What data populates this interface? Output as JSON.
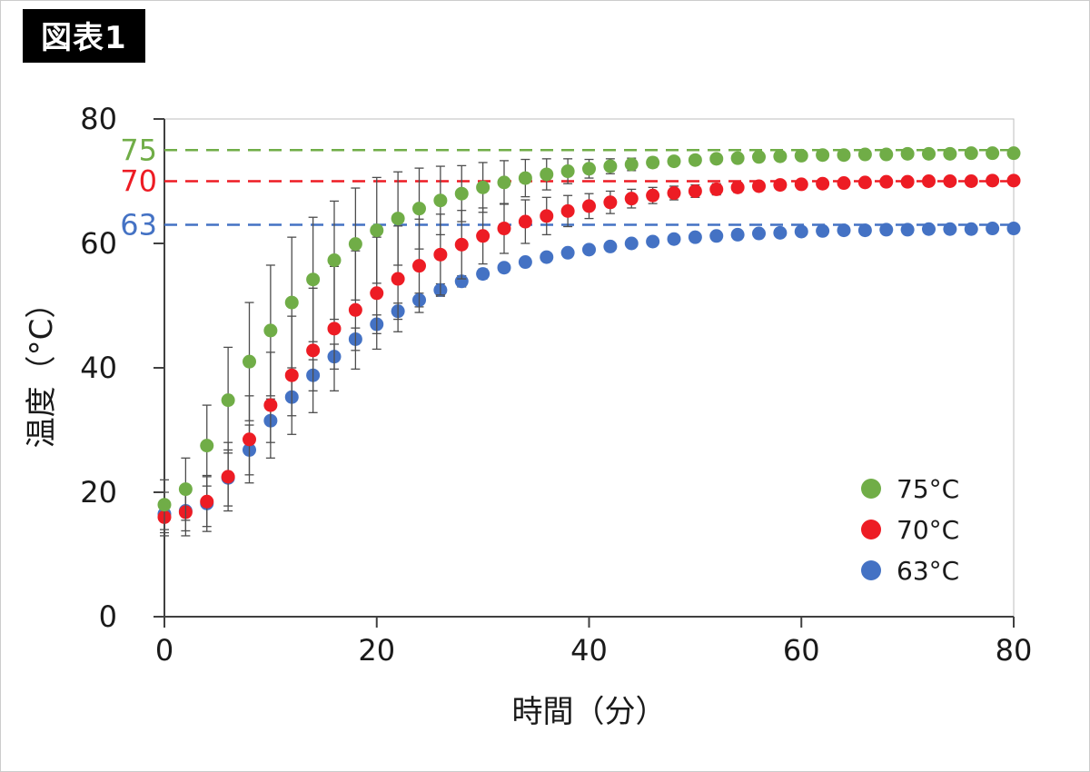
{
  "figure_label": "図表1",
  "chart_data": {
    "type": "scatter",
    "title": "",
    "xlabel": "時間（分）",
    "ylabel": "温度（°C）",
    "xlim": [
      0,
      80
    ],
    "ylim": [
      0,
      80
    ],
    "xticks": [
      0,
      20,
      40,
      60,
      80
    ],
    "yticks": [
      0,
      20,
      40,
      60,
      80
    ],
    "grid": false,
    "legend_position": "bottom-right",
    "error_bar_color": "#4d4d4d",
    "axis_color": "#404040",
    "text_color": "#1a1a1a",
    "x": [
      0,
      2,
      4,
      6,
      8,
      10,
      12,
      14,
      16,
      18,
      20,
      22,
      24,
      26,
      28,
      30,
      32,
      34,
      36,
      38,
      40,
      42,
      44,
      46,
      48,
      50,
      52,
      54,
      56,
      58,
      60,
      62,
      64,
      66,
      68,
      70,
      72,
      74,
      76,
      78,
      80
    ],
    "series": [
      {
        "name": "75°C",
        "color": "#70ad47",
        "target": 75,
        "values": [
          18,
          20.5,
          27.5,
          34.8,
          41,
          46,
          50.5,
          54.2,
          57.3,
          59.9,
          62.1,
          64,
          65.6,
          66.9,
          68,
          69,
          69.8,
          70.5,
          71.1,
          71.6,
          72,
          72.4,
          72.7,
          73,
          73.2,
          73.4,
          73.6,
          73.7,
          73.9,
          74,
          74.1,
          74.2,
          74.2,
          74.3,
          74.3,
          74.4,
          74.4,
          74.4,
          74.5,
          74.5,
          74.5
        ],
        "errors": [
          4,
          5,
          6.5,
          8.5,
          9.5,
          10.5,
          10.5,
          10,
          9.5,
          9,
          8.5,
          7.5,
          6.5,
          5.5,
          4.5,
          4,
          3.5,
          3,
          2.5,
          2,
          1.5,
          1.2,
          1,
          0.8,
          0.7,
          0.6,
          0.5,
          0.5,
          0.4,
          0.4,
          0.3,
          0.3,
          0.3,
          0.3,
          0.3,
          0.3,
          0.3,
          0.3,
          0.3,
          0.3,
          0.3
        ]
      },
      {
        "name": "70°C",
        "color": "#ed1c24",
        "target": 70,
        "values": [
          16,
          16.8,
          18.5,
          22.5,
          28.5,
          34,
          38.8,
          42.8,
          46.3,
          49.3,
          52,
          54.3,
          56.4,
          58.2,
          59.8,
          61.2,
          62.4,
          63.5,
          64.4,
          65.2,
          66,
          66.6,
          67.2,
          67.7,
          68.1,
          68.4,
          68.7,
          69,
          69.2,
          69.4,
          69.5,
          69.6,
          69.7,
          69.8,
          69.9,
          69.9,
          70,
          70,
          70,
          70.1,
          70.1
        ],
        "errors": [
          2.5,
          3,
          4,
          5.5,
          7,
          8.5,
          9.5,
          10,
          10,
          9.5,
          9,
          8.5,
          7.5,
          6.5,
          5.5,
          4.5,
          4,
          3.5,
          3,
          2.5,
          2,
          1.8,
          1.5,
          1.3,
          1.1,
          1,
          0.9,
          0.8,
          0.7,
          0.6,
          0.5,
          0.5,
          0.4,
          0.4,
          0.4,
          0.3,
          0.3,
          0.3,
          0.3,
          0.3,
          0.3
        ]
      },
      {
        "name": "63°C",
        "color": "#4472c4",
        "target": 63,
        "values": [
          16.5,
          17,
          18.2,
          22.3,
          26.8,
          31.5,
          35.3,
          38.8,
          41.8,
          44.6,
          47,
          49.1,
          50.9,
          52.5,
          53.9,
          55.1,
          56.1,
          57,
          57.8,
          58.5,
          59,
          59.5,
          60,
          60.3,
          60.7,
          61,
          61.2,
          61.4,
          61.6,
          61.7,
          61.9,
          62,
          62.1,
          62.1,
          62.2,
          62.2,
          62.3,
          62.3,
          62.3,
          62.4,
          62.4
        ],
        "errors": [
          3.5,
          4,
          4.5,
          4.5,
          4,
          3.5,
          3,
          2.5,
          2,
          1.8,
          1.5,
          1.3,
          1.1,
          1,
          0.9,
          0.8,
          0.7,
          0.6,
          0.6,
          0.5,
          0.5,
          0.4,
          0.4,
          0.4,
          0.3,
          0.3,
          0.3,
          0.3,
          0.3,
          0.3,
          0.2,
          0.2,
          0.2,
          0.2,
          0.2,
          0.2,
          0.2,
          0.2,
          0.2,
          0.2,
          0.2
        ]
      }
    ],
    "reference_lines": [
      {
        "label": "75",
        "value": 75,
        "color": "#70ad47"
      },
      {
        "label": "70",
        "value": 70,
        "color": "#ed1c24"
      },
      {
        "label": "63",
        "value": 63,
        "color": "#4472c4"
      }
    ]
  }
}
